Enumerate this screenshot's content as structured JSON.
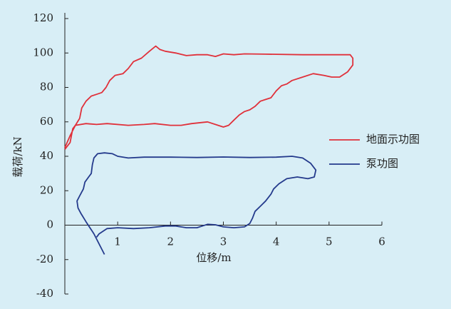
{
  "chart_data": {
    "type": "line",
    "x_label": "位移/m",
    "y_label": "载荷/kN",
    "xlim": [
      0,
      6
    ],
    "ylim": [
      -40,
      120
    ],
    "xticks": [
      1,
      2,
      3,
      4,
      5,
      6
    ],
    "yticks": [
      -40,
      -20,
      0,
      20,
      40,
      60,
      80,
      100,
      120
    ],
    "series": [
      {
        "name": "地面示功图",
        "color": "#e0303a",
        "x": [
          0,
          0.1,
          0.2,
          0.28,
          0.32,
          0.4,
          0.5,
          0.6,
          0.7,
          0.78,
          0.85,
          0.95,
          1.1,
          1.2,
          1.3,
          1.45,
          1.6,
          1.72,
          1.8,
          1.9,
          2.1,
          2.3,
          2.5,
          2.7,
          2.85,
          3.0,
          3.2,
          3.4,
          3.8,
          4.5,
          5.0,
          5.4,
          5.45,
          5.45,
          5.35,
          5.2,
          5.05,
          4.9,
          4.7,
          4.5,
          4.3,
          4.2,
          4.1,
          4.0,
          3.9,
          3.8,
          3.7,
          3.6,
          3.5,
          3.4,
          3.3,
          3.2,
          3.1,
          3.0,
          2.9,
          2.7,
          2.4,
          2.2,
          2.0,
          1.7,
          1.5,
          1.2,
          0.8,
          0.6,
          0.4,
          0.2,
          0.15,
          0.1,
          0
        ],
        "values": [
          45,
          52,
          58,
          62,
          68,
          72,
          75,
          76,
          77,
          80,
          84,
          87,
          88,
          91,
          95,
          97,
          101,
          104,
          102,
          101,
          100,
          98.5,
          99,
          99,
          98,
          99.5,
          99,
          99.5,
          99.3,
          99,
          99,
          99,
          97,
          93,
          89,
          86,
          86,
          87,
          88,
          86,
          84,
          82,
          81,
          78,
          74,
          73,
          72,
          69,
          67,
          66,
          64,
          61,
          58,
          57,
          58,
          60,
          59,
          58,
          58,
          59,
          58.5,
          58,
          59,
          58.5,
          59,
          58,
          56,
          48,
          44
        ]
      },
      {
        "name": "泵功图",
        "color": "#243a8c",
        "x": [
          0.75,
          0.55,
          0.4,
          0.3,
          0.25,
          0.23,
          0.28,
          0.35,
          0.38,
          0.45,
          0.5,
          0.52,
          0.55,
          0.62,
          0.75,
          0.9,
          1.0,
          1.2,
          1.5,
          2.0,
          2.5,
          3.0,
          3.5,
          4.0,
          4.3,
          4.5,
          4.65,
          4.75,
          4.72,
          4.6,
          4.4,
          4.2,
          4.05,
          3.95,
          3.9,
          3.8,
          3.7,
          3.6,
          3.55,
          3.5,
          3.4,
          3.2,
          3.0,
          2.85,
          2.7,
          2.5,
          2.3,
          2.1,
          1.9,
          1.6,
          1.3,
          1.0,
          0.8,
          0.65,
          0.6
        ],
        "values": [
          -17,
          -5,
          2,
          7,
          10,
          14,
          17,
          21,
          25,
          28,
          30,
          35,
          39,
          41.5,
          42,
          41.5,
          40,
          39,
          39.5,
          39.5,
          39.3,
          39.6,
          39.3,
          39.5,
          40,
          39,
          36,
          32,
          28,
          27,
          28,
          27,
          24,
          21,
          18,
          14,
          11,
          8,
          4,
          1,
          -1,
          -1.5,
          -1,
          0.2,
          0.5,
          -1.5,
          -1.5,
          -0.5,
          -0.5,
          -1.5,
          -2,
          -1.5,
          -2,
          -5,
          -7
        ]
      }
    ]
  }
}
